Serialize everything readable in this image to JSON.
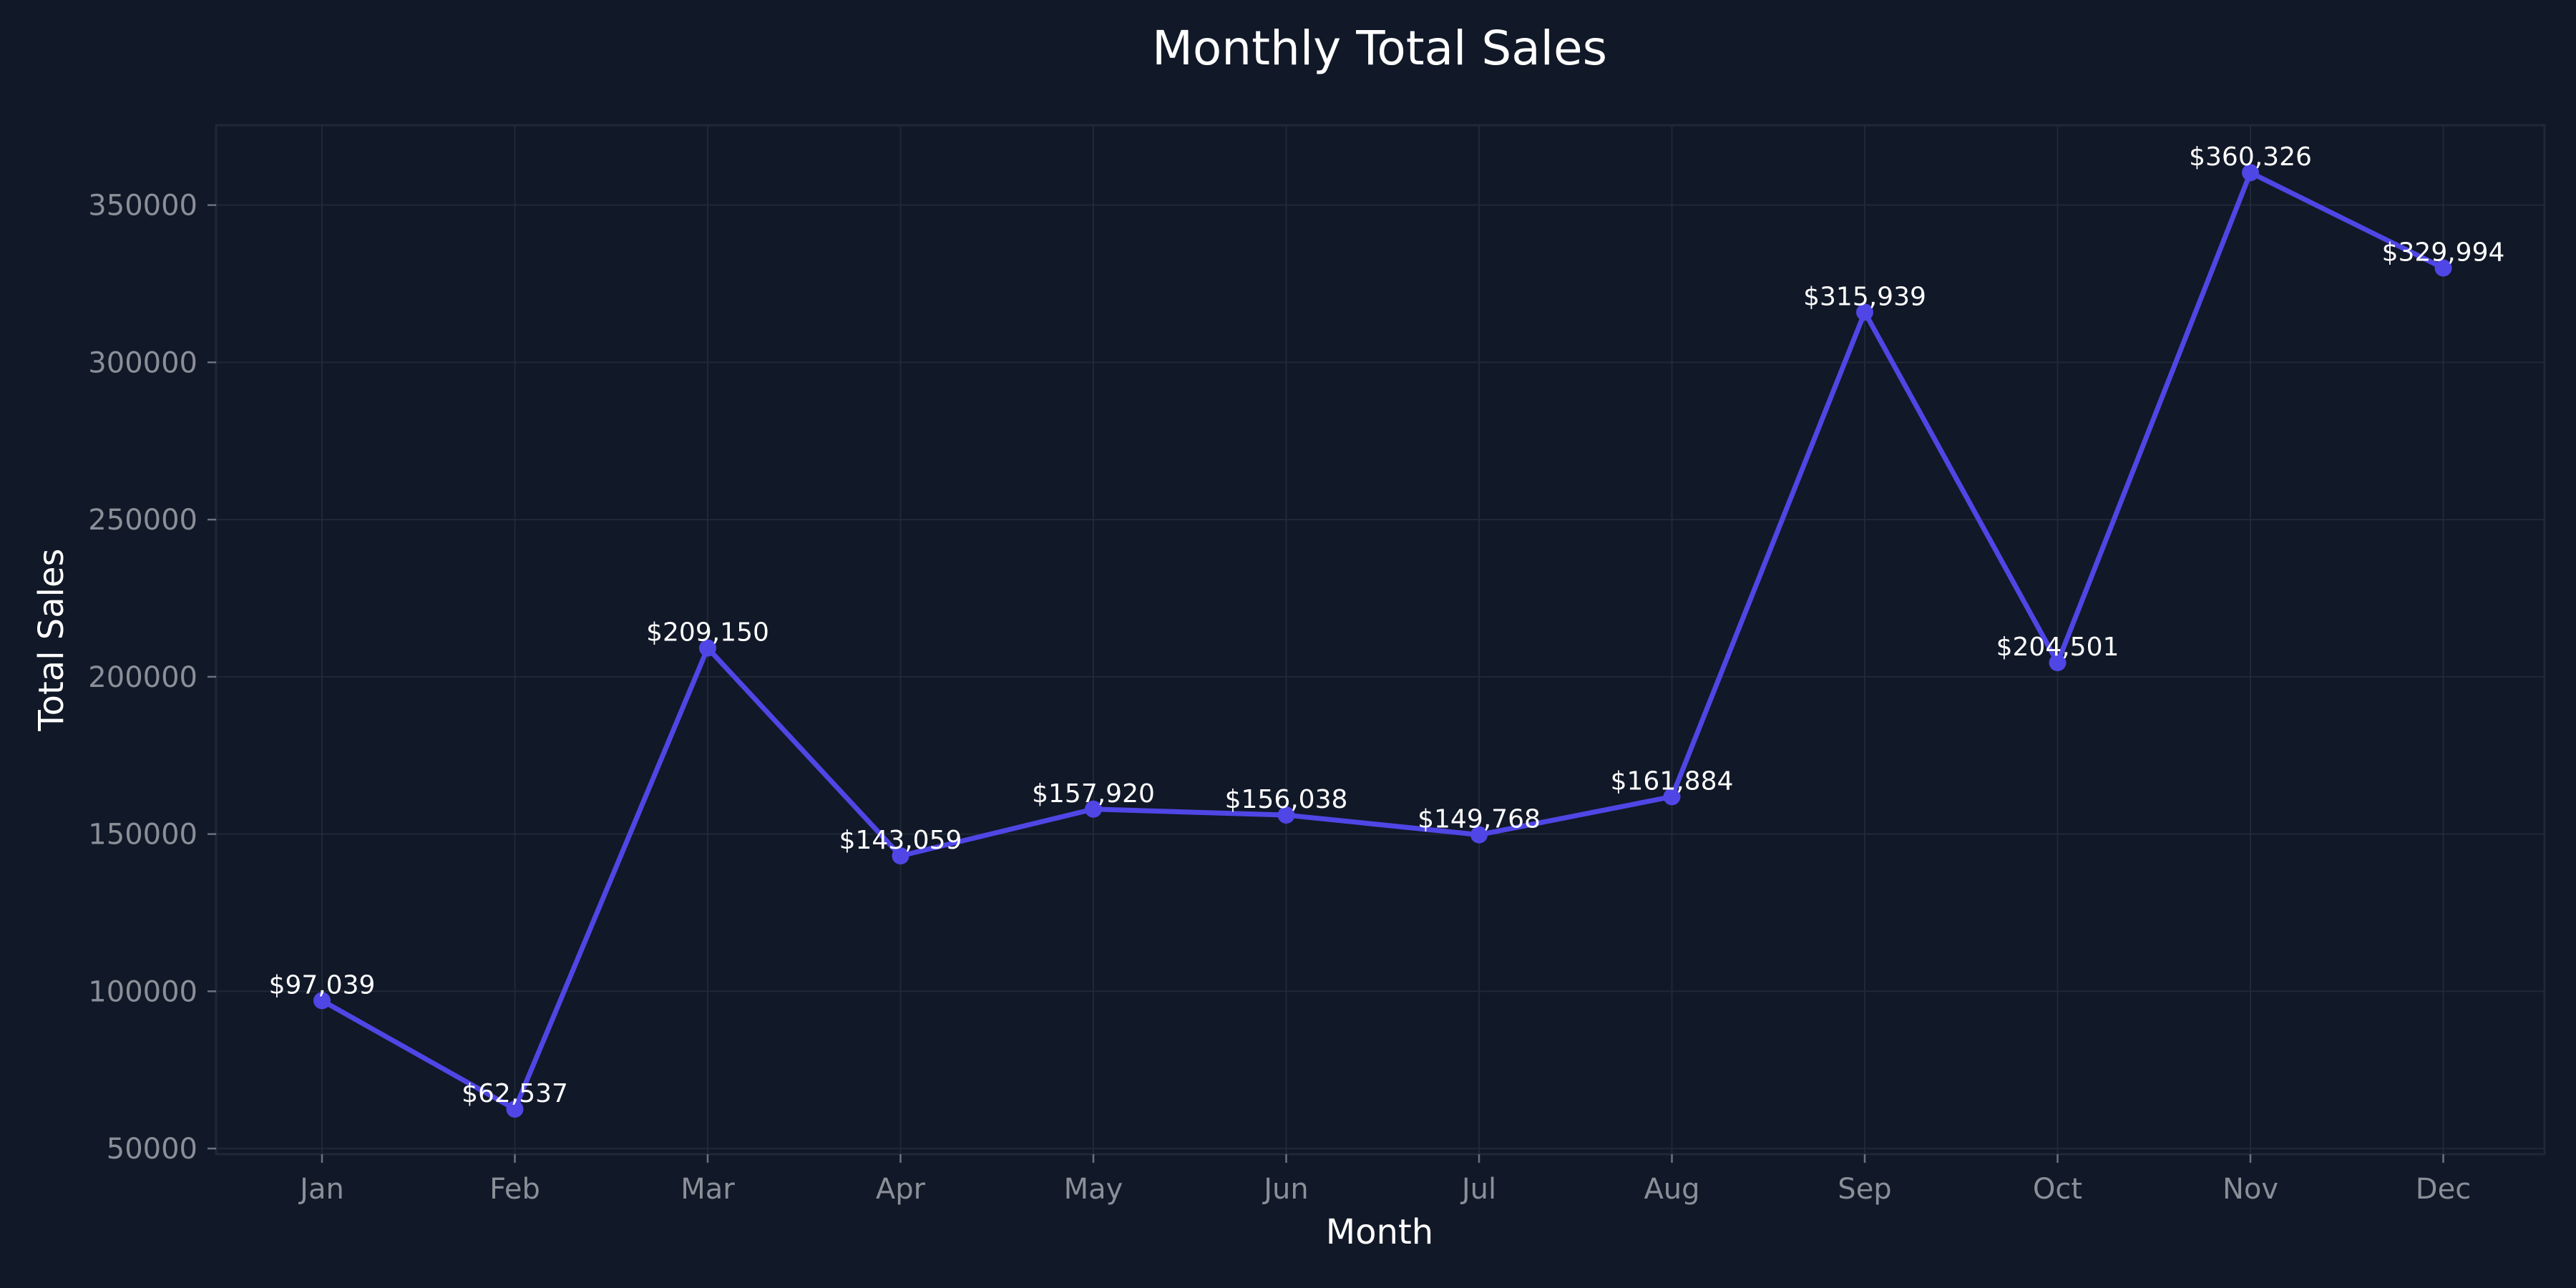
{
  "chart_data": {
    "type": "line",
    "title": "Monthly Total Sales",
    "xlabel": "Month",
    "ylabel": "Total Sales",
    "categories": [
      "Jan",
      "Feb",
      "Mar",
      "Apr",
      "May",
      "Jun",
      "Jul",
      "Aug",
      "Sep",
      "Oct",
      "Nov",
      "Dec"
    ],
    "values": [
      97039,
      62537,
      209150,
      143059,
      157920,
      156038,
      149768,
      161884,
      315939,
      204501,
      360326,
      329994
    ],
    "data_labels": [
      "$97,039",
      "$62,537",
      "$209,150",
      "$143,059",
      "$157,920",
      "$156,038",
      "$149,768",
      "$161,884",
      "$315,939",
      "$204,501",
      "$360,326",
      "$329,994"
    ],
    "yticks": [
      50000,
      100000,
      150000,
      200000,
      250000,
      300000,
      350000
    ],
    "ytick_labels": [
      "50000",
      "100000",
      "150000",
      "200000",
      "250000",
      "300000",
      "350000"
    ],
    "ylim": [
      48200,
      375400
    ],
    "grid": true,
    "line_color": "#4f46e5",
    "background_color": "#111827"
  }
}
